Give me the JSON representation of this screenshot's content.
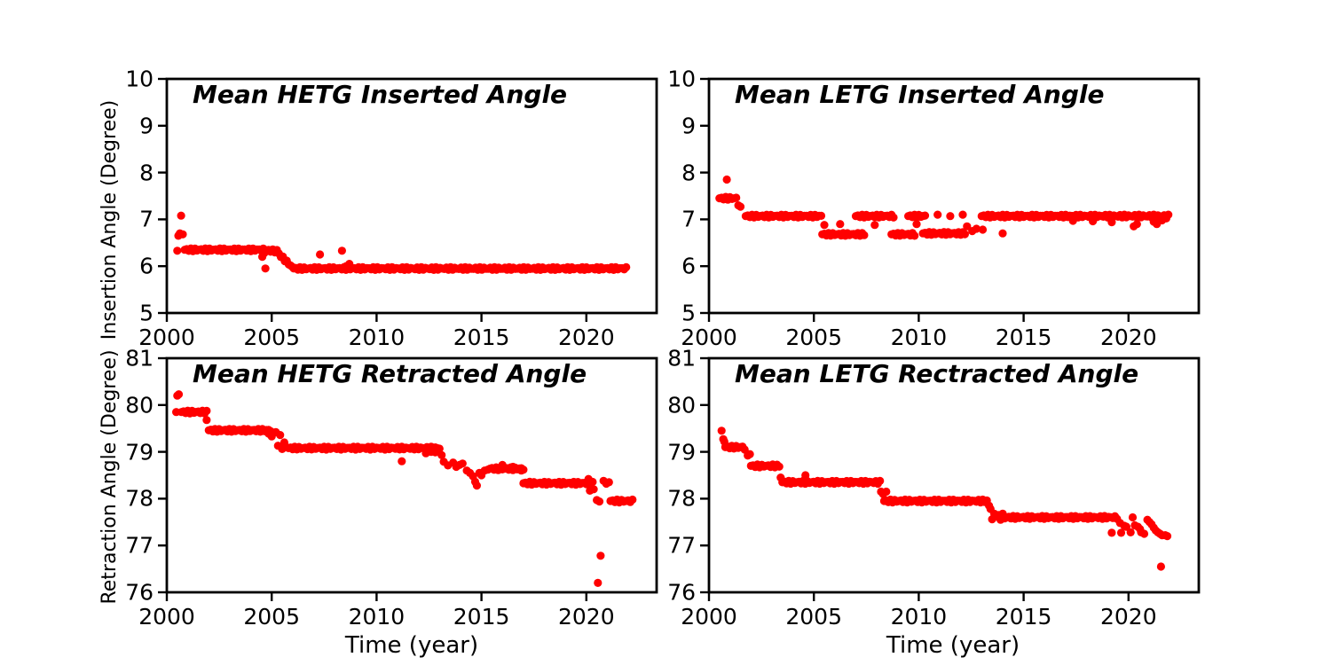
{
  "figure": {
    "background": "#ffffff",
    "axis_color": "#000000",
    "marker_color": "#ff0000",
    "grid": false,
    "legend": "none"
  },
  "chart_data": [
    {
      "id": "hetg-inserted",
      "type": "scatter",
      "title": "Mean HETG Inserted Angle",
      "ylabel": "Insertion Angle (Degree)",
      "xlabel": "",
      "xlim": [
        2000,
        2023.35
      ],
      "ylim": [
        5,
        10
      ],
      "xticks": [
        2000,
        2005,
        2010,
        2015,
        2020
      ],
      "yticks": [
        5,
        6,
        7,
        8,
        9,
        10
      ],
      "bands": [
        [
          2000.85,
          2004.6,
          6.35,
          6.35
        ],
        [
          2004.75,
          2005.25,
          6.34,
          6.32
        ],
        [
          2005.25,
          2006.0,
          6.3,
          5.97
        ],
        [
          2006.05,
          2021.9,
          5.95,
          5.95
        ]
      ],
      "points": [
        [
          2000.5,
          6.33
        ],
        [
          2000.55,
          6.65
        ],
        [
          2000.62,
          6.7
        ],
        [
          2000.68,
          7.08
        ],
        [
          2000.76,
          6.68
        ],
        [
          2004.55,
          6.2
        ],
        [
          2004.65,
          6.28
        ],
        [
          2004.7,
          5.95
        ],
        [
          2007.3,
          6.25
        ],
        [
          2008.35,
          6.33
        ],
        [
          2008.55,
          6.0
        ],
        [
          2008.7,
          6.05
        ]
      ]
    },
    {
      "id": "letg-inserted",
      "type": "scatter",
      "title": "Mean LETG Inserted Angle",
      "ylabel": "",
      "xlabel": "",
      "xlim": [
        2000,
        2023.35
      ],
      "ylim": [
        5,
        10
      ],
      "xticks": [
        2000,
        2005,
        2010,
        2015,
        2020
      ],
      "yticks": [
        5,
        6,
        7,
        8,
        9,
        10
      ],
      "bands": [
        [
          2000.5,
          2001.3,
          7.45,
          7.45
        ],
        [
          2001.75,
          2005.35,
          7.07,
          7.07
        ],
        [
          2005.4,
          2007.4,
          6.68,
          6.68
        ],
        [
          2007.0,
          2008.8,
          7.07,
          7.07
        ],
        [
          2008.7,
          2009.8,
          6.68,
          6.68
        ],
        [
          2009.5,
          2010.3,
          7.07,
          7.07
        ],
        [
          2010.2,
          2012.2,
          6.7,
          6.7
        ],
        [
          2013.0,
          2021.9,
          7.07,
          7.07
        ]
      ],
      "points": [
        [
          2000.85,
          7.85
        ],
        [
          2001.4,
          7.3
        ],
        [
          2001.5,
          7.27
        ],
        [
          2005.5,
          6.88
        ],
        [
          2006.25,
          6.9
        ],
        [
          2007.9,
          6.88
        ],
        [
          2009.9,
          6.9
        ],
        [
          2010.9,
          7.1
        ],
        [
          2011.5,
          7.07
        ],
        [
          2012.1,
          7.1
        ],
        [
          2012.3,
          6.85
        ],
        [
          2012.55,
          6.75
        ],
        [
          2012.75,
          6.8
        ],
        [
          2013.05,
          6.78
        ],
        [
          2014.0,
          6.7
        ],
        [
          2017.35,
          6.97
        ],
        [
          2018.3,
          6.96
        ],
        [
          2019.2,
          6.94
        ],
        [
          2020.25,
          6.85
        ],
        [
          2020.4,
          6.9
        ],
        [
          2021.2,
          6.95
        ],
        [
          2021.35,
          6.9
        ],
        [
          2021.6,
          6.98
        ],
        [
          2021.8,
          7.02
        ]
      ]
    },
    {
      "id": "hetg-retracted",
      "type": "scatter",
      "title": "Mean HETG Retracted Angle",
      "ylabel": "Retraction Angle (Degree)",
      "xlabel": "Time (year)",
      "xlim": [
        2000,
        2023.35
      ],
      "ylim": [
        76,
        81
      ],
      "xticks": [
        2000,
        2005,
        2010,
        2015,
        2020
      ],
      "yticks": [
        76,
        77,
        78,
        79,
        80,
        81
      ],
      "bands": [
        [
          2000.7,
          2001.9,
          79.85,
          79.85
        ],
        [
          2002.0,
          2004.95,
          79.46,
          79.46
        ],
        [
          2005.8,
          2013.0,
          79.08,
          79.08
        ],
        [
          2015.4,
          2017.0,
          78.64,
          78.64
        ],
        [
          2017.0,
          2020.3,
          78.33,
          78.33
        ],
        [
          2021.15,
          2022.2,
          77.95,
          77.95
        ]
      ],
      "points": [
        [
          2000.45,
          79.85
        ],
        [
          2000.5,
          80.2
        ],
        [
          2000.57,
          80.23
        ],
        [
          2001.9,
          79.68
        ],
        [
          2004.85,
          79.39
        ],
        [
          2005.0,
          79.33
        ],
        [
          2005.2,
          79.42
        ],
        [
          2005.4,
          79.36
        ],
        [
          2005.3,
          79.13
        ],
        [
          2005.5,
          79.06
        ],
        [
          2005.6,
          79.2
        ],
        [
          2005.7,
          79.1
        ],
        [
          2011.2,
          78.8
        ],
        [
          2012.35,
          78.97
        ],
        [
          2012.6,
          79.0
        ],
        [
          2012.8,
          78.99
        ],
        [
          2013.1,
          78.93
        ],
        [
          2013.2,
          78.79
        ],
        [
          2013.4,
          78.71
        ],
        [
          2013.65,
          78.77
        ],
        [
          2013.8,
          78.68
        ],
        [
          2013.95,
          78.72
        ],
        [
          2014.1,
          78.75
        ],
        [
          2014.3,
          78.6
        ],
        [
          2014.45,
          78.55
        ],
        [
          2014.6,
          78.48
        ],
        [
          2014.7,
          78.36
        ],
        [
          2014.78,
          78.28
        ],
        [
          2014.9,
          78.55
        ],
        [
          2015.0,
          78.5
        ],
        [
          2015.15,
          78.6
        ],
        [
          2015.3,
          78.62
        ],
        [
          2016.0,
          78.72
        ],
        [
          2016.5,
          78.68
        ],
        [
          2016.9,
          78.6
        ],
        [
          2020.1,
          78.42
        ],
        [
          2020.17,
          78.17
        ],
        [
          2020.35,
          78.2
        ],
        [
          2020.5,
          77.97
        ],
        [
          2020.62,
          77.94
        ],
        [
          2020.55,
          76.2
        ],
        [
          2020.68,
          76.78
        ],
        [
          2020.82,
          78.38
        ],
        [
          2020.95,
          78.32
        ],
        [
          2021.08,
          78.35
        ]
      ]
    },
    {
      "id": "letg-retracted",
      "type": "scatter",
      "title": "Mean LETG Rectracted Angle",
      "ylabel": "",
      "xlabel": "Time (year)",
      "xlim": [
        2000,
        2023.35
      ],
      "ylim": [
        76,
        81
      ],
      "xticks": [
        2000,
        2005,
        2010,
        2015,
        2020
      ],
      "yticks": [
        76,
        77,
        78,
        79,
        80,
        81
      ],
      "bands": [
        [
          2000.78,
          2001.6,
          79.1,
          79.1
        ],
        [
          2002.0,
          2003.35,
          78.7,
          78.7
        ],
        [
          2003.5,
          2008.15,
          78.35,
          78.35
        ],
        [
          2008.35,
          2013.25,
          77.95,
          77.95
        ],
        [
          2014.2,
          2019.45,
          77.6,
          77.6
        ]
      ],
      "points": [
        [
          2000.6,
          79.45
        ],
        [
          2000.68,
          79.27
        ],
        [
          2000.73,
          79.22
        ],
        [
          2001.7,
          79.05
        ],
        [
          2001.85,
          78.92
        ],
        [
          2001.95,
          78.95
        ],
        [
          2003.42,
          78.45
        ],
        [
          2004.6,
          78.5
        ],
        [
          2008.2,
          78.15
        ],
        [
          2008.3,
          78.1
        ],
        [
          2008.45,
          78.15
        ],
        [
          2013.35,
          77.85
        ],
        [
          2013.42,
          77.78
        ],
        [
          2013.5,
          77.56
        ],
        [
          2013.6,
          77.68
        ],
        [
          2013.7,
          77.62
        ],
        [
          2013.8,
          77.65
        ],
        [
          2013.9,
          77.55
        ],
        [
          2014.0,
          77.68
        ],
        [
          2014.1,
          77.58
        ],
        [
          2019.2,
          77.27
        ],
        [
          2019.6,
          77.48
        ],
        [
          2019.65,
          77.27
        ],
        [
          2019.8,
          77.42
        ],
        [
          2019.9,
          77.4
        ],
        [
          2020.1,
          77.28
        ],
        [
          2020.2,
          77.6
        ],
        [
          2020.3,
          77.43
        ],
        [
          2020.45,
          77.4
        ],
        [
          2020.55,
          77.35
        ],
        [
          2020.6,
          77.28
        ],
        [
          2020.75,
          77.25
        ],
        [
          2020.9,
          77.55
        ],
        [
          2021.0,
          77.5
        ],
        [
          2021.1,
          77.45
        ],
        [
          2021.2,
          77.38
        ],
        [
          2021.3,
          77.32
        ],
        [
          2021.4,
          77.28
        ],
        [
          2021.5,
          77.25
        ],
        [
          2021.6,
          77.22
        ],
        [
          2021.75,
          77.22
        ],
        [
          2021.85,
          77.2
        ],
        [
          2021.55,
          76.55
        ]
      ]
    }
  ]
}
